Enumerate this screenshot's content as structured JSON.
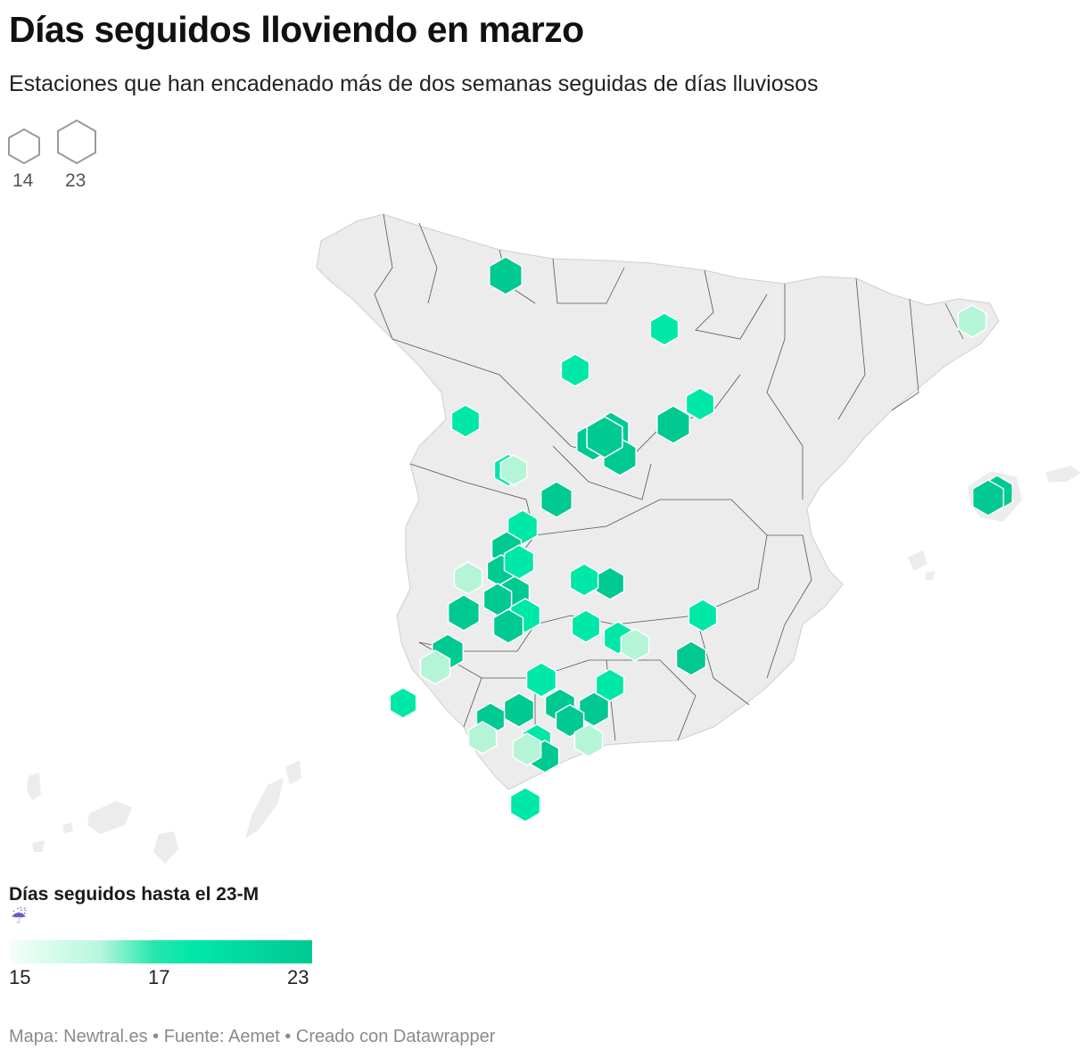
{
  "header": {
    "title": "Días seguidos lloviendo en marzo",
    "subtitle": "Estaciones que han encadenado más de dos semanas seguidas de días lluviosos"
  },
  "size_legend": {
    "values": [
      "14",
      "23"
    ]
  },
  "color_legend": {
    "title": "Días seguidos hasta el 23-M",
    "icon": "☔",
    "icon_name": "umbrella-rain-icon",
    "ticks": [
      "15",
      "17",
      "23"
    ],
    "colors": {
      "low": "#f4fff8",
      "mid_low": "#b7f7dc",
      "mid": "#00e8a8",
      "high": "#00c992"
    }
  },
  "map": {
    "land_color": "#ececec",
    "border_color": "#555555"
  },
  "footer": {
    "text": "Mapa: Newtral.es • Fuente: Aemet • Creado con Datawrapper"
  }
}
